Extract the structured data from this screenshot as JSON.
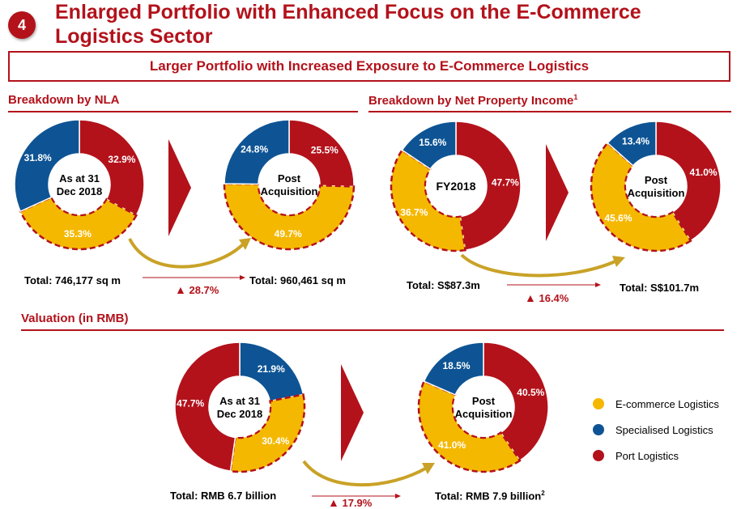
{
  "header": {
    "badge": "4",
    "title": "Enlarged Portfolio with Enhanced Focus on the E-Commerce Logistics Sector",
    "subtitle": "Larger Portfolio with Increased Exposure to E-Commerce Logistics"
  },
  "sections": {
    "nla": {
      "heading": "Breakdown by NLA",
      "total_before": "Total: 746,177 sq m",
      "total_after": "Total: 960,461 sq m",
      "growth": "28.7%"
    },
    "npi": {
      "heading": "Breakdown by Net Property Income",
      "heading_sup": "1",
      "total_before": "Total: S$87.3m",
      "total_after": "Total: S$101.7m",
      "growth": "16.4%"
    },
    "valuation": {
      "heading": "Valuation (in RMB)",
      "total_before": "Total: RMB 6.7 billion",
      "total_after": "Total: RMB 7.9 billion",
      "total_after_sup": "2",
      "growth": "17.9%"
    }
  },
  "legend": [
    {
      "label": "E-commerce Logistics",
      "color": "#f5b800"
    },
    {
      "label": "Specialised Logistics",
      "color": "#0e5494"
    },
    {
      "label": "Port Logistics",
      "color": "#b3121b"
    }
  ],
  "chart_data": [
    {
      "type": "pie",
      "center_label": [
        "As at 31",
        "Dec 2018"
      ],
      "slices": [
        {
          "category": "Port Logistics",
          "value": 32.9,
          "label": "32.9%"
        },
        {
          "category": "E-commerce Logistics",
          "value": 35.3,
          "label": "35.3%"
        },
        {
          "category": "Specialised Logistics",
          "value": 31.8,
          "label": "31.8%"
        }
      ]
    },
    {
      "type": "pie",
      "center_label": [
        "Post",
        "Acquisition"
      ],
      "slices": [
        {
          "category": "Port Logistics",
          "value": 25.5,
          "label": "25.5%"
        },
        {
          "category": "E-commerce Logistics",
          "value": 49.7,
          "label": "49.7%"
        },
        {
          "category": "Specialised Logistics",
          "value": 24.8,
          "label": "24.8%"
        }
      ]
    },
    {
      "type": "pie",
      "center_label": [
        "FY2018"
      ],
      "slices": [
        {
          "category": "Port Logistics",
          "value": 47.7,
          "label": "47.7%"
        },
        {
          "category": "E-commerce Logistics",
          "value": 36.7,
          "label": "36.7%"
        },
        {
          "category": "Specialised Logistics",
          "value": 15.6,
          "label": "15.6%"
        }
      ]
    },
    {
      "type": "pie",
      "center_label": [
        "Post",
        "Acquisition"
      ],
      "slices": [
        {
          "category": "Port Logistics",
          "value": 41.0,
          "label": "41.0%"
        },
        {
          "category": "E-commerce Logistics",
          "value": 45.6,
          "label": "45.6%"
        },
        {
          "category": "Specialised Logistics",
          "value": 13.4,
          "label": "13.4%"
        }
      ]
    },
    {
      "type": "pie",
      "center_label": [
        "As at 31",
        "Dec 2018"
      ],
      "slices": [
        {
          "category": "Specialised Logistics",
          "value": 21.9,
          "label": "21.9%"
        },
        {
          "category": "E-commerce Logistics",
          "value": 30.4,
          "label": "30.4%"
        },
        {
          "category": "Port Logistics",
          "value": 47.7,
          "label": "47.7%"
        }
      ]
    },
    {
      "type": "pie",
      "center_label": [
        "Post",
        "Acquisition"
      ],
      "slices": [
        {
          "category": "Port Logistics",
          "value": 40.5,
          "label": "40.5%"
        },
        {
          "category": "E-commerce Logistics",
          "value": 41.0,
          "label": "41.0%"
        },
        {
          "category": "Specialised Logistics",
          "value": 18.5,
          "label": "18.5%"
        }
      ]
    }
  ]
}
